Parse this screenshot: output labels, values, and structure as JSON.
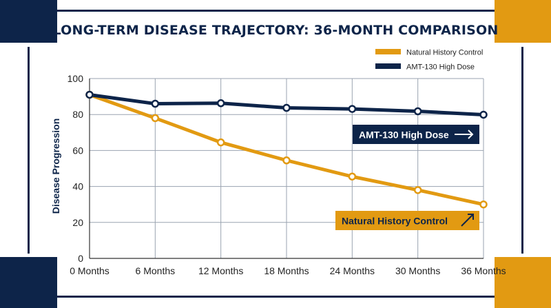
{
  "chart_data": {
    "type": "line",
    "title": "LONG-TERM DISEASE TRAJECTORY: 36-MONTH COMPARISON",
    "xlabel": "",
    "ylabel": "Disease Progression",
    "categories": [
      "0 Months",
      "6 Months",
      "12 Months",
      "18 Months",
      "24 Months",
      "30 Months",
      "36 Months"
    ],
    "ylim": [
      0,
      100
    ],
    "yticks": [
      "0",
      "20",
      "40",
      "60",
      "80",
      "100"
    ],
    "grid": true,
    "legend_position": "top-right",
    "series": [
      {
        "name": "Natural History Control",
        "color": "#e29a12",
        "values": [
          91,
          78,
          64.5,
          54.5,
          45.5,
          38,
          30
        ]
      },
      {
        "name": "AMT-130 High Dose",
        "color": "#0d2449",
        "values": [
          91,
          86,
          86.3,
          83.7,
          83.1,
          81.8,
          79.9
        ]
      }
    ],
    "annotations": [
      {
        "label": "AMT-130 High Dose",
        "arrow": "right-arrow-icon",
        "color": "#0d2449"
      },
      {
        "label": "Natural History Control",
        "arrow": "up-right-arrow-icon",
        "color": "#e29a12"
      }
    ]
  }
}
